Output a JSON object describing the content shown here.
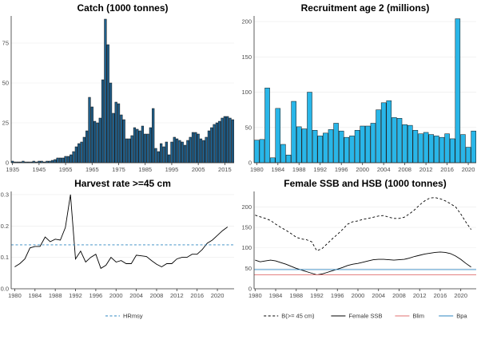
{
  "chart_data": [
    {
      "id": "catch",
      "type": "bar",
      "title": "Catch (1000 tonnes)",
      "xlabel": "",
      "ylabel": "",
      "bar_color": "#1f5f8b",
      "x_start": 1935,
      "values": [
        1,
        0.5,
        0.5,
        0.5,
        1,
        0.5,
        0.5,
        0.5,
        1,
        0.5,
        1,
        1,
        0.5,
        1,
        1,
        1.5,
        2,
        3,
        3,
        3,
        4,
        4,
        5,
        7,
        10,
        12,
        13,
        16,
        20,
        41,
        35,
        26,
        25,
        28,
        52,
        90,
        74,
        50,
        31,
        38,
        37,
        30,
        27,
        15,
        15,
        17,
        22,
        21,
        20,
        23,
        18,
        18,
        22,
        34,
        9,
        7,
        12,
        10,
        13,
        5,
        13,
        16,
        15,
        14,
        13,
        11,
        14,
        16,
        19,
        19,
        18,
        15,
        14,
        16,
        20,
        22,
        24,
        25,
        26,
        28,
        29,
        29,
        28,
        27
      ],
      "xticks": [
        1935,
        1945,
        1955,
        1965,
        1975,
        1985,
        1995,
        2005,
        2015
      ],
      "ylim": [
        0,
        92
      ],
      "yticks": [
        0,
        25,
        50,
        75
      ]
    },
    {
      "id": "recruitment",
      "type": "bar",
      "title": "Recruitment age 2 (millions)",
      "xlabel": "",
      "ylabel": "",
      "bar_color": "#29b6e8",
      "x_start": 1980,
      "values": [
        32,
        33,
        106,
        7,
        77,
        26,
        11,
        87,
        51,
        48,
        100,
        46,
        38,
        42,
        47,
        56,
        45,
        36,
        38,
        46,
        52,
        52,
        56,
        75,
        85,
        88,
        64,
        63,
        54,
        53,
        46,
        41,
        43,
        40,
        38,
        36,
        41,
        34,
        204,
        40,
        22,
        45
      ],
      "xticks": [
        1980,
        1984,
        1988,
        1992,
        1996,
        2000,
        2004,
        2008,
        2012,
        2016,
        2020
      ],
      "ylim": [
        0,
        208
      ],
      "yticks": [
        0,
        50,
        100,
        150,
        200
      ]
    },
    {
      "id": "harvest",
      "type": "line",
      "title": "Harvest rate >=45 cm",
      "xlabel": "",
      "ylabel": "",
      "series": [
        {
          "name": "Harvest rate",
          "style": "solid",
          "color": "#000000",
          "x": [
            1980,
            1981,
            1982,
            1983,
            1984,
            1985,
            1986,
            1987,
            1988,
            1989,
            1990,
            1991,
            1992,
            1993,
            1994,
            1995,
            1996,
            1997,
            1998,
            1999,
            2000,
            2001,
            2002,
            2003,
            2004,
            2005,
            2006,
            2007,
            2008,
            2009,
            2010,
            2011,
            2012,
            2013,
            2014,
            2015,
            2016,
            2017,
            2018,
            2019,
            2020,
            2021,
            2022
          ],
          "y": [
            0.07,
            0.08,
            0.095,
            0.13,
            0.135,
            0.135,
            0.165,
            0.15,
            0.158,
            0.155,
            0.195,
            0.3,
            0.095,
            0.12,
            0.085,
            0.1,
            0.11,
            0.065,
            0.075,
            0.1,
            0.085,
            0.09,
            0.08,
            0.08,
            0.107,
            0.105,
            0.103,
            0.09,
            0.078,
            0.07,
            0.08,
            0.08,
            0.095,
            0.1,
            0.1,
            0.11,
            0.11,
            0.125,
            0.145,
            0.155,
            0.17,
            0.185,
            0.197
          ]
        },
        {
          "name": "HRmsy",
          "style": "dashed",
          "color": "#2e86c1",
          "constant": 0.14
        }
      ],
      "xticks": [
        1980,
        1984,
        1988,
        1992,
        1996,
        2000,
        2004,
        2008,
        2012,
        2016,
        2020
      ],
      "xlim": [
        1979.3,
        2023.3
      ],
      "ylim": [
        0,
        0.31
      ],
      "yticks": [
        0.0,
        0.1,
        0.2,
        0.3
      ],
      "ytick_labels": [
        "0.0",
        "0.1",
        "0.2",
        "0.3"
      ],
      "legend": {
        "position": "bottom",
        "items": [
          "HRmsy"
        ]
      }
    },
    {
      "id": "ssb",
      "type": "line",
      "title": "Female SSB and HSB (1000 tonnes)",
      "xlabel": "",
      "ylabel": "",
      "series": [
        {
          "name": "B(>= 45 cm)",
          "style": "dashed",
          "color": "#000000",
          "x": [
            1980,
            1981,
            1982,
            1983,
            1984,
            1985,
            1986,
            1987,
            1988,
            1989,
            1990,
            1991,
            1992,
            1993,
            1994,
            1995,
            1996,
            1997,
            1998,
            1999,
            2000,
            2001,
            2002,
            2003,
            2004,
            2005,
            2006,
            2007,
            2008,
            2009,
            2010,
            2011,
            2012,
            2013,
            2014,
            2015,
            2016,
            2017,
            2018,
            2019,
            2020,
            2021,
            2022
          ],
          "y": [
            180,
            176,
            172,
            167,
            158,
            150,
            143,
            135,
            126,
            122,
            120,
            115,
            93,
            98,
            110,
            122,
            133,
            145,
            158,
            164,
            166,
            170,
            172,
            175,
            178,
            179,
            175,
            172,
            172,
            175,
            183,
            193,
            205,
            215,
            222,
            223,
            220,
            215,
            208,
            200,
            183,
            163,
            145
          ]
        },
        {
          "name": "Female SSB",
          "style": "solid",
          "color": "#000000",
          "x": [
            1980,
            1981,
            1982,
            1983,
            1984,
            1985,
            1986,
            1987,
            1988,
            1989,
            1990,
            1991,
            1992,
            1993,
            1994,
            1995,
            1996,
            1997,
            1998,
            1999,
            2000,
            2001,
            2002,
            2003,
            2004,
            2005,
            2006,
            2007,
            2008,
            2009,
            2010,
            2011,
            2012,
            2013,
            2014,
            2015,
            2016,
            2017,
            2018,
            2019,
            2020,
            2021,
            2022
          ],
          "y": [
            70,
            66,
            68,
            70,
            68,
            64,
            60,
            55,
            50,
            46,
            42,
            38,
            34,
            36,
            40,
            44,
            48,
            52,
            57,
            60,
            62,
            65,
            68,
            71,
            72,
            72,
            71,
            70,
            71,
            72,
            75,
            79,
            82,
            85,
            87,
            89,
            90,
            89,
            86,
            80,
            72,
            62,
            53
          ]
        },
        {
          "name": "Blim",
          "style": "solid",
          "color": "#e07070",
          "constant": 34
        },
        {
          "name": "Bpa",
          "style": "solid",
          "color": "#2e86c1",
          "constant": 47
        }
      ],
      "xticks": [
        1980,
        1984,
        1988,
        1992,
        1996,
        2000,
        2004,
        2008,
        2012,
        2016,
        2020
      ],
      "xlim": [
        1979.8,
        2023
      ],
      "ylim": [
        0,
        238
      ],
      "yticks": [
        0,
        50,
        100,
        150,
        200
      ],
      "legend": {
        "position": "bottom",
        "items": [
          "B(>= 45 cm)",
          "Female SSB",
          "Blim",
          "Bpa"
        ]
      }
    }
  ]
}
